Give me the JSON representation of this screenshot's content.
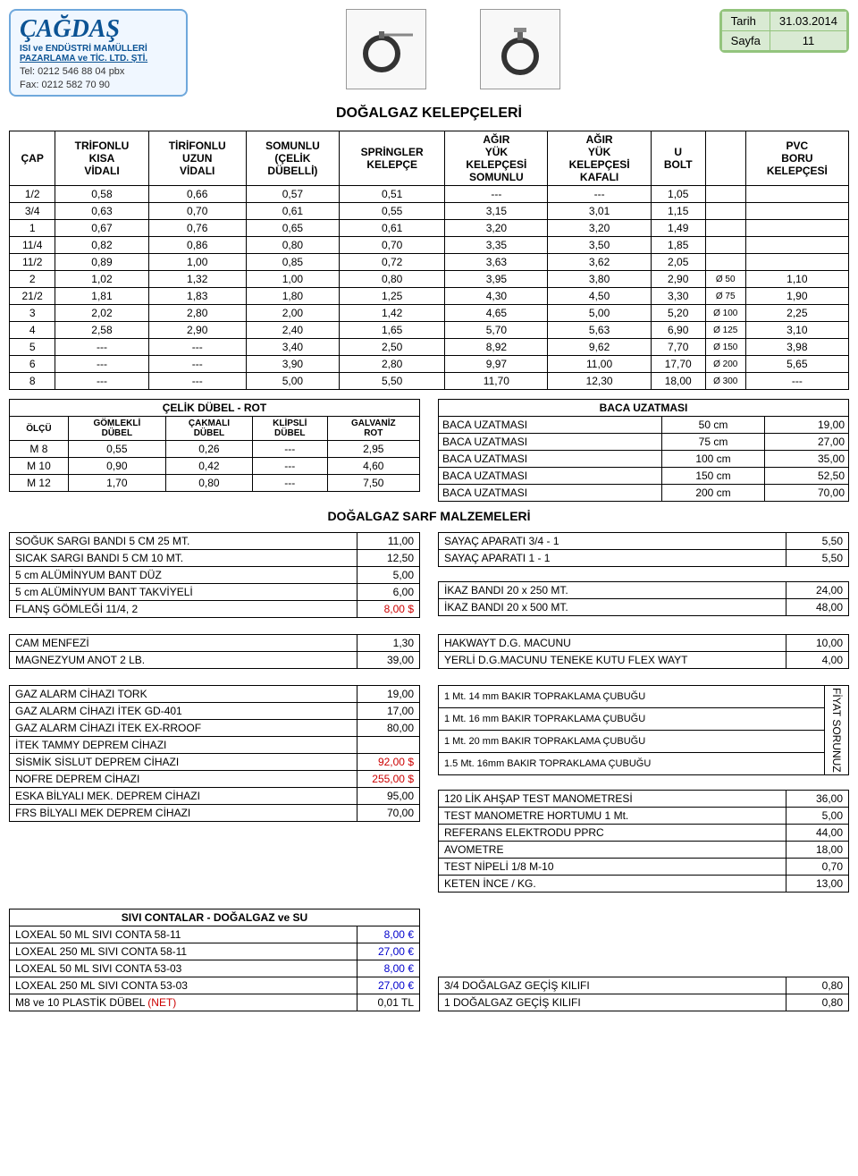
{
  "logo": {
    "name": "ÇAĞDAŞ",
    "sub1": "ISI ve ENDÜSTRİ MAMÜLLERİ",
    "sub2": "PAZARLAMA ve TİC. LTD. ŞTİ.",
    "tel": "Tel: 0212 546 88 04 pbx",
    "fax": "Fax: 0212 582 70 90"
  },
  "date_box": {
    "tarih_label": "Tarih",
    "tarih_val": "31.03.2014",
    "sayfa_label": "Sayfa",
    "sayfa_val": "11"
  },
  "main_title": "DOĞALGAZ KELEPÇELERİ",
  "main_table": {
    "headers": [
      "ÇAP",
      "TRİFONLU KISA VİDALI",
      "TİRİFONLU UZUN VİDALI",
      "SOMUNLU (ÇELİK DÜBELLİ)",
      "SPRİNGLER KELEPÇE",
      "AĞIR YÜK KELEPÇESİ SOMUNLU",
      "AĞIR YÜK KELEPÇESİ KAFALI",
      "U BOLT",
      "",
      "PVC BORU KELEPÇESİ"
    ],
    "rows": [
      [
        "1/2",
        "0,58",
        "0,66",
        "0,57",
        "0,51",
        "---",
        "---",
        "1,05",
        "",
        ""
      ],
      [
        "3/4",
        "0,63",
        "0,70",
        "0,61",
        "0,55",
        "3,15",
        "3,01",
        "1,15",
        "",
        ""
      ],
      [
        "1",
        "0,67",
        "0,76",
        "0,65",
        "0,61",
        "3,20",
        "3,20",
        "1,49",
        "",
        ""
      ],
      [
        "11/4",
        "0,82",
        "0,86",
        "0,80",
        "0,70",
        "3,35",
        "3,50",
        "1,85",
        "",
        ""
      ],
      [
        "11/2",
        "0,89",
        "1,00",
        "0,85",
        "0,72",
        "3,63",
        "3,62",
        "2,05",
        "",
        ""
      ],
      [
        "2",
        "1,02",
        "1,32",
        "1,00",
        "0,80",
        "3,95",
        "3,80",
        "2,90",
        "Ø 50",
        "1,10"
      ],
      [
        "21/2",
        "1,81",
        "1,83",
        "1,80",
        "1,25",
        "4,30",
        "4,50",
        "3,30",
        "Ø 75",
        "1,90"
      ],
      [
        "3",
        "2,02",
        "2,80",
        "2,00",
        "1,42",
        "4,65",
        "5,00",
        "5,20",
        "Ø 100",
        "2,25"
      ],
      [
        "4",
        "2,58",
        "2,90",
        "2,40",
        "1,65",
        "5,70",
        "5,63",
        "6,90",
        "Ø 125",
        "3,10"
      ],
      [
        "5",
        "---",
        "---",
        "3,40",
        "2,50",
        "8,92",
        "9,62",
        "7,70",
        "Ø 150",
        "3,98"
      ],
      [
        "6",
        "---",
        "---",
        "3,90",
        "2,80",
        "9,97",
        "11,00",
        "17,70",
        "Ø 200",
        "5,65"
      ],
      [
        "8",
        "---",
        "---",
        "5,00",
        "5,50",
        "11,70",
        "12,30",
        "18,00",
        "Ø 300",
        "---"
      ]
    ]
  },
  "celik_dubel": {
    "title": "ÇELİK DÜBEL - ROT",
    "headers": [
      "ÖLÇÜ",
      "GÖMLEKLİ DÜBEL",
      "ÇAKMALI DÜBEL",
      "KLİPSLİ DÜBEL",
      "GALVANİZ ROT"
    ],
    "rows": [
      [
        "M 8",
        "0,55",
        "0,26",
        "---",
        "2,95"
      ],
      [
        "M 10",
        "0,90",
        "0,42",
        "---",
        "4,60"
      ],
      [
        "M 12",
        "1,70",
        "0,80",
        "---",
        "7,50"
      ]
    ]
  },
  "baca": {
    "title": "BACA UZATMASI",
    "rows": [
      [
        "BACA UZATMASI",
        "50 cm",
        "19,00"
      ],
      [
        "BACA UZATMASI",
        "75 cm",
        "27,00"
      ],
      [
        "BACA UZATMASI",
        "100 cm",
        "35,00"
      ],
      [
        "BACA UZATMASI",
        "150 cm",
        "52,50"
      ],
      [
        "BACA UZATMASI",
        "200 cm",
        "70,00"
      ]
    ]
  },
  "sarf_title": "DOĞALGAZ SARF MALZEMELERİ",
  "sarf_left1": [
    [
      "SOĞUK SARGI BANDI      5 CM  25 MT.",
      "11,00",
      ""
    ],
    [
      "SICAK SARGI BANDI        5 CM  10 MT.",
      "12,50",
      ""
    ],
    [
      "5 cm ALÜMİNYUM BANT DÜZ",
      "5,00",
      ""
    ],
    [
      "5 cm ALÜMİNYUM BANT TAKVİYELİ",
      "6,00",
      ""
    ],
    [
      "FLANŞ GÖMLEĞİ              11/4,    2",
      "8,00 $",
      "red"
    ]
  ],
  "sarf_right1": [
    [
      "SAYAÇ APARATI          3/4 - 1",
      "5,50"
    ],
    [
      "SAYAÇ APARATI            1  - 1",
      "5,50"
    ]
  ],
  "sarf_right1b": [
    [
      "İKAZ BANDI                 20 x 250 MT.",
      "24,00"
    ],
    [
      "İKAZ BANDI                 20 x 500 MT.",
      "48,00"
    ]
  ],
  "sarf_left2": [
    [
      "CAM MENFEZİ",
      "1,30"
    ],
    [
      "MAGNEZYUM ANOT          2 LB.",
      "39,00"
    ]
  ],
  "sarf_right2": [
    [
      "HAKWAYT D.G. MACUNU",
      "10,00"
    ],
    [
      "YERLİ D.G.MACUNU TENEKE KUTU FLEX WAYT",
      "4,00"
    ]
  ],
  "sarf_left3": [
    [
      "GAZ ALARM CİHAZI       TORK",
      "19,00",
      ""
    ],
    [
      "GAZ ALARM CİHAZI       İTEK   GD-401",
      "17,00",
      ""
    ],
    [
      "GAZ ALARM CİHAZI       İTEK EX-RROOF",
      "80,00",
      ""
    ],
    [
      "İTEK TAMMY                  DEPREM CİHAZI",
      "",
      ""
    ],
    [
      "SİSMİK SİSLUT              DEPREM CİHAZI",
      "92,00 $",
      "red"
    ],
    [
      "NOFRE                           DEPREM CİHAZI",
      "255,00 $",
      "red"
    ],
    [
      "ESKA BİLYALI MEK.       DEPREM CİHAZI",
      "95,00",
      ""
    ],
    [
      "FRS BİLYALI MEK           DEPREM CİHAZI",
      "70,00",
      ""
    ]
  ],
  "sarf_right3": [
    [
      "1 Mt. 14 mm     BAKIR TOPRAKLAMA ÇUBUĞU"
    ],
    [
      "1 Mt. 16 mm     BAKIR TOPRAKLAMA ÇUBUĞU"
    ],
    [
      "1 Mt. 20 mm     BAKIR TOPRAKLAMA ÇUBUĞU"
    ],
    [
      "1.5 Mt. 16mm   BAKIR TOPRAKLAMA ÇUBUĞU"
    ]
  ],
  "fiyat_sorunuz": "FİYAT SORUNUZ",
  "sarf_right4": [
    [
      "120 LİK AHŞAP TEST MANOMETRESİ",
      "36,00"
    ],
    [
      "TEST MANOMETRE HORTUMU  1 Mt.",
      "5,00"
    ],
    [
      "REFERANS ELEKTRODU      PPRC",
      "44,00"
    ],
    [
      "AVOMETRE",
      "18,00"
    ],
    [
      "TEST NİPELİ       1/8  M-10",
      "0,70"
    ],
    [
      "KETEN                İNCE / KG.",
      "13,00"
    ]
  ],
  "sivi_contalar": {
    "title": "SIVI CONTALAR  -  DOĞALGAZ ve SU",
    "rows": [
      [
        "LOXEAL         50 ML SIVI CONTA     58-11",
        "8,00 €",
        "blue"
      ],
      [
        "LOXEAL       250 ML SIVI CONTA     58-11",
        "27,00 €",
        "blue"
      ],
      [
        "LOXEAL         50 ML SIVI CONTA     53-03",
        "8,00 €",
        "blue"
      ],
      [
        "LOXEAL       250 ML SIVI CONTA     53-03",
        "27,00 €",
        "blue"
      ],
      [
        "M8 ve 10 PLASTİK DÜBEL                         (NET)",
        "0,01 TL",
        ""
      ]
    ],
    "net_label": "(NET)"
  },
  "gecis": [
    [
      "3/4       DOĞALGAZ GEÇİŞ KILIFI",
      "0,80"
    ],
    [
      "1          DOĞALGAZ GEÇİŞ KILIFI",
      "0,80"
    ]
  ]
}
